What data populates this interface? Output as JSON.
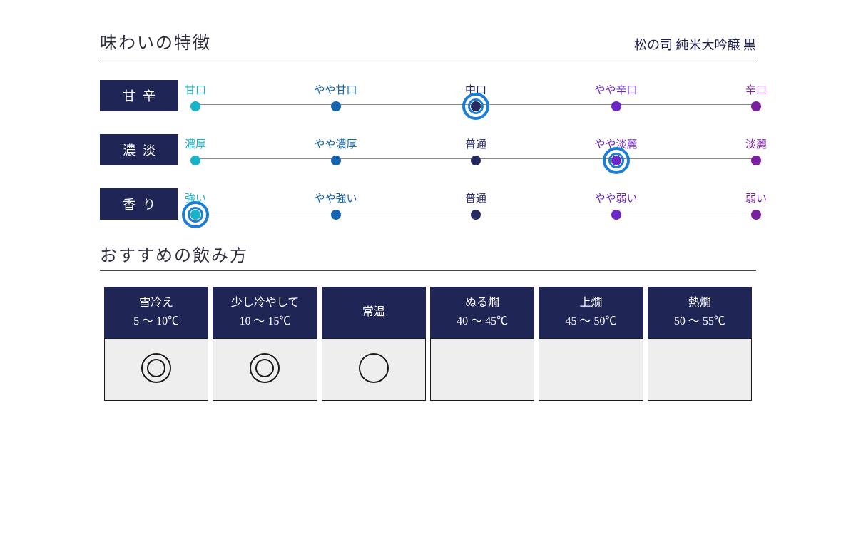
{
  "colors": {
    "badge_bg": "#1f2554",
    "rule": "#444444",
    "track": "#888888",
    "selected_ring": "#1c7fd6",
    "table_header_bg": "#1f2554",
    "table_cell_bg": "#eeeeee",
    "table_border": "#1b1b1b",
    "mark_stroke": "#1b1b1b"
  },
  "taste": {
    "title": "味わいの特徴",
    "subtitle": "松の司 純米大吟醸 黒",
    "point_colors": [
      "#17b3c9",
      "#1565b0",
      "#252a63",
      "#6d28c9",
      "#7a1fa0"
    ],
    "rows": [
      {
        "badge": "甘辛",
        "labels": [
          "甘口",
          "やや甘口",
          "中口",
          "やや辛口",
          "辛口"
        ],
        "selected_index": 2
      },
      {
        "badge": "濃淡",
        "labels": [
          "濃厚",
          "やや濃厚",
          "普通",
          "やや淡麗",
          "淡麗"
        ],
        "selected_index": 3
      },
      {
        "badge": "香り",
        "labels": [
          "強い",
          "やや強い",
          "普通",
          "やや弱い",
          "弱い"
        ],
        "selected_index": 0
      }
    ]
  },
  "serve": {
    "title": "おすすめの飲み方",
    "columns": [
      {
        "name": "雪冷え",
        "range": "5 〜 10℃",
        "mark": "double"
      },
      {
        "name": "少し冷やして",
        "range": "10 〜 15℃",
        "mark": "double"
      },
      {
        "name": "常温",
        "range": "",
        "mark": "single"
      },
      {
        "name": "ぬる燗",
        "range": "40 〜 45℃",
        "mark": ""
      },
      {
        "name": "上燗",
        "range": "45 〜 50℃",
        "mark": ""
      },
      {
        "name": "熱燗",
        "range": "50 〜 55℃",
        "mark": ""
      }
    ]
  }
}
